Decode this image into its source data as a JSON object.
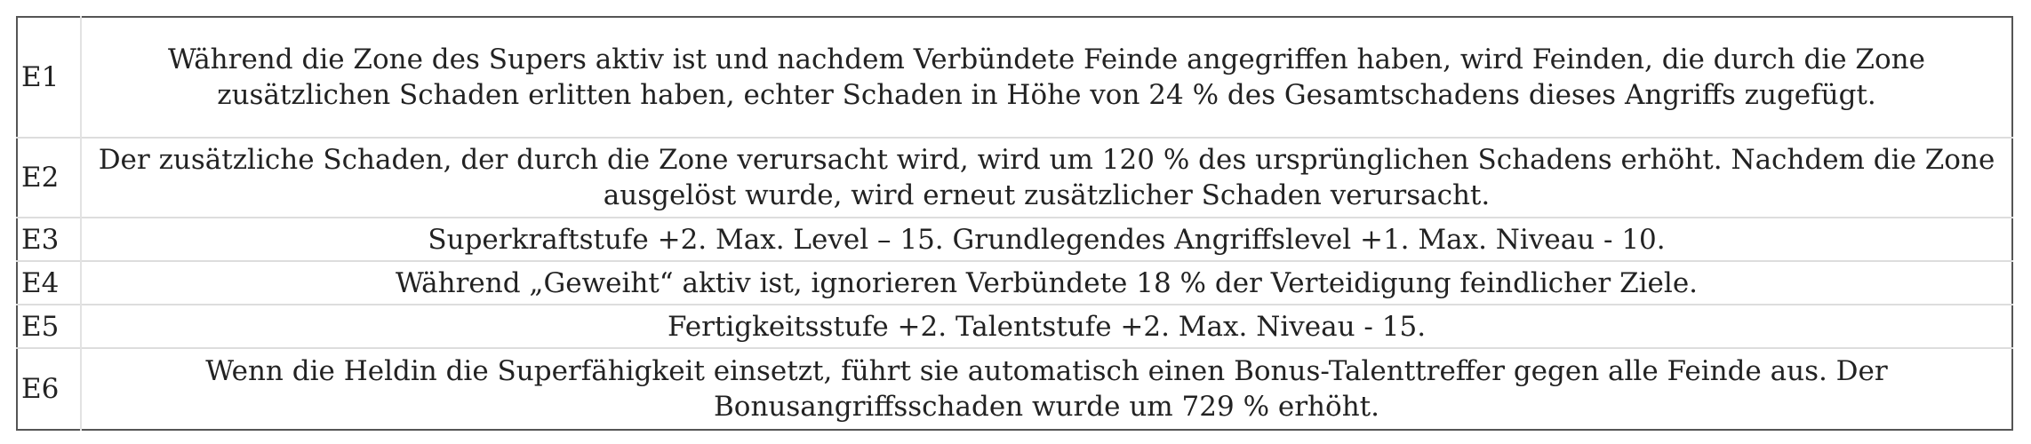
{
  "rows": [
    {
      "code": "E1",
      "text": "Während die Zone des Supers aktiv ist und nachdem Verbündete Feinde angegriffen haben, wird Feinden, die durch die Zone zusätzlichen Schaden erlitten haben, echter Schaden in Höhe von 24 % des Gesamtschadens dieses Angriffs zugefügt."
    },
    {
      "code": "E2",
      "text": "Der zusätzliche Schaden, der durch die Zone verursacht wird, wird um 120 % des ursprünglichen Schadens erhöht. Nachdem die Zone ausgelöst wurde, wird erneut zusätzlicher Schaden verursacht."
    },
    {
      "code": "E3",
      "text": "Superkraftstufe +2. Max. Level – 15. Grundlegendes Angriffslevel +1. Max. Niveau - 10."
    },
    {
      "code": "E4",
      "text": "Während „Geweiht“ aktiv ist, ignorieren Verbündete 18 % der Verteidigung feindlicher Ziele."
    },
    {
      "code": "E5",
      "text": "Fertigkeitsstufe +2. Talentstufe +2. Max. Niveau - 15."
    },
    {
      "code": "E6",
      "text": "Wenn die Heldin die Superfähigkeit einsetzt, führt sie automatisch einen Bonus-Talenttreffer gegen alle Feinde aus. Der Bonusangriffsschaden wurde um 729 % erhöht."
    }
  ]
}
